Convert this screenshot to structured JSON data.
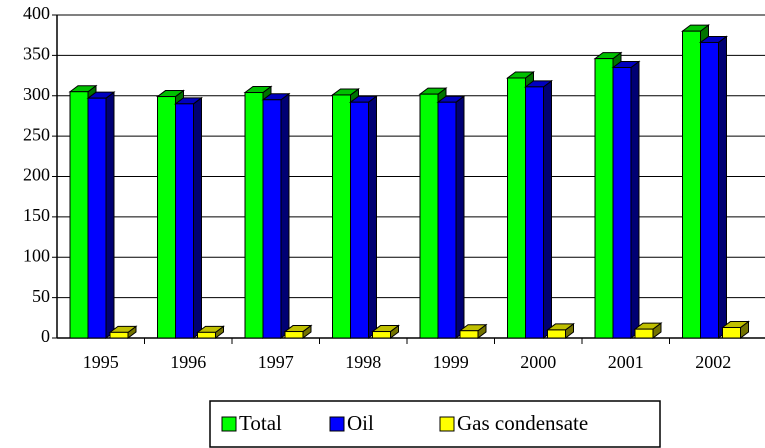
{
  "chart_data": {
    "type": "bar",
    "categories": [
      "1995",
      "1996",
      "1997",
      "1998",
      "1999",
      "2000",
      "2001",
      "2002"
    ],
    "series": [
      {
        "name": "Total",
        "color": "#00ff00",
        "values": [
          305,
          299,
          304,
          301,
          302,
          322,
          346,
          380
        ]
      },
      {
        "name": "Oil",
        "color": "#0000ff",
        "values": [
          297,
          290,
          295,
          292,
          292,
          311,
          335,
          366
        ]
      },
      {
        "name": "Gas condensate",
        "color": "#ffff00",
        "values": [
          7,
          7,
          8,
          8,
          9,
          10,
          11,
          13
        ]
      }
    ],
    "ylim": [
      0,
      400
    ],
    "yticks": [
      0,
      50,
      100,
      150,
      200,
      250,
      300,
      350,
      400
    ],
    "grid": true,
    "legend": "bottom"
  }
}
